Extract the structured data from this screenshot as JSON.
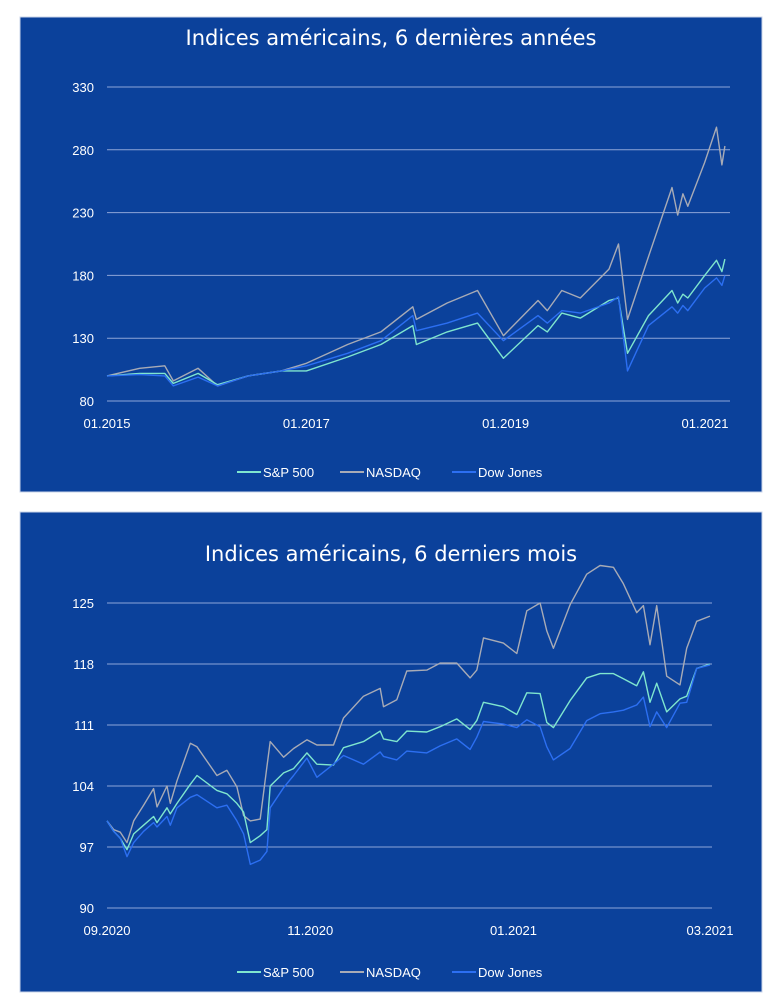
{
  "colors": {
    "background": "#0b419b",
    "grid": "#8ea5d8",
    "sp500": "#7fe6cf",
    "nasdaq": "#a8abb6",
    "dow": "#2c6ff2"
  },
  "chart_data": [
    {
      "type": "line",
      "title": "Indices américains, 6 dernières années",
      "ylim": [
        80,
        330
      ],
      "y_ticks": [
        80,
        130,
        180,
        230,
        280,
        330
      ],
      "x_ticks": [
        {
          "date": "2015-01-01",
          "label": "01.2015"
        },
        {
          "date": "2017-01-01",
          "label": "01.2017"
        },
        {
          "date": "2019-01-01",
          "label": "01.2019"
        },
        {
          "date": "2021-01-01",
          "label": "01.2021"
        }
      ],
      "grid": true,
      "legend": "bottom",
      "x": [
        "2015-01-01",
        "2015-05-01",
        "2015-08-01",
        "2015-09-01",
        "2015-12-01",
        "2016-02-10",
        "2016-06-01",
        "2016-10-01",
        "2017-01-01",
        "2017-06-01",
        "2017-10-01",
        "2018-01-26",
        "2018-02-08",
        "2018-06-01",
        "2018-09-20",
        "2018-12-24",
        "2019-04-30",
        "2019-06-03",
        "2019-07-26",
        "2019-10-02",
        "2020-01-15",
        "2020-02-19",
        "2020-03-23",
        "2020-06-08",
        "2020-09-02",
        "2020-09-23",
        "2020-10-12",
        "2020-10-30",
        "2020-12-31",
        "2021-02-12",
        "2021-03-04",
        "2021-03-15"
      ],
      "series": [
        {
          "name": "S&P 500",
          "color": "#7fe6cf",
          "values": [
            100,
            102,
            102,
            94,
            102,
            93,
            100,
            104,
            104,
            115,
            125,
            140,
            125,
            135,
            142,
            114,
            140,
            135,
            150,
            146,
            160,
            162,
            118,
            148,
            168,
            158,
            165,
            162,
            180,
            192,
            183,
            193
          ]
        },
        {
          "name": "NASDAQ",
          "color": "#a8abb6",
          "values": [
            100,
            106,
            108,
            96,
            106,
            92,
            100,
            104,
            110,
            125,
            135,
            155,
            145,
            158,
            168,
            132,
            160,
            152,
            168,
            162,
            185,
            205,
            145,
            195,
            250,
            228,
            245,
            235,
            270,
            298,
            268,
            283
          ]
        },
        {
          "name": "Dow Jones",
          "color": "#2c6ff2",
          "values": [
            100,
            101,
            100,
            92,
            99,
            92,
            100,
            104,
            108,
            118,
            128,
            148,
            136,
            142,
            150,
            128,
            148,
            142,
            152,
            150,
            158,
            163,
            104,
            140,
            155,
            150,
            156,
            152,
            170,
            178,
            172,
            180
          ]
        }
      ]
    },
    {
      "type": "line",
      "title": "Indices américains, 6 derniers mois",
      "ylim": [
        90,
        125
      ],
      "y_ticks": [
        90,
        97,
        104,
        111,
        118,
        125
      ],
      "x_ticks": [
        {
          "date": "2020-09-01",
          "label": "09.2020"
        },
        {
          "date": "2020-11-01",
          "label": "11.2020"
        },
        {
          "date": "2021-01-01",
          "label": "01.2021"
        },
        {
          "date": "2021-03-01",
          "label": "03.2021"
        }
      ],
      "grid": true,
      "legend": "bottom",
      "x": [
        "2020-09-01",
        "2020-09-03",
        "2020-09-05",
        "2020-09-07",
        "2020-09-09",
        "2020-09-12",
        "2020-09-15",
        "2020-09-16",
        "2020-09-19",
        "2020-09-20",
        "2020-09-22",
        "2020-09-26",
        "2020-09-28",
        "2020-10-04",
        "2020-10-07",
        "2020-10-10",
        "2020-10-12",
        "2020-10-14",
        "2020-10-17",
        "2020-10-19",
        "2020-10-20",
        "2020-10-24",
        "2020-10-27",
        "2020-10-31",
        "2020-11-03",
        "2020-11-08",
        "2020-11-11",
        "2020-11-17",
        "2020-11-22",
        "2020-11-23",
        "2020-11-27",
        "2020-11-30",
        "2020-12-06",
        "2020-12-10",
        "2020-12-15",
        "2020-12-19",
        "2020-12-21",
        "2020-12-23",
        "2020-12-29",
        "2021-01-02",
        "2021-01-05",
        "2021-01-09",
        "2021-01-11",
        "2021-01-13",
        "2021-01-18",
        "2021-01-23",
        "2021-01-27",
        "2021-01-31",
        "2021-02-03",
        "2021-02-07",
        "2021-02-09",
        "2021-02-11",
        "2021-02-13",
        "2021-02-16",
        "2021-02-20",
        "2021-02-22",
        "2021-02-25",
        "2021-03-01"
      ],
      "series": [
        {
          "name": "S&P 500",
          "color": "#7fe6cf",
          "values": [
            100,
            98.8,
            98,
            96.7,
            98.5,
            99.5,
            100.5,
            99.8,
            101.5,
            100.8,
            102,
            104.2,
            105.2,
            103.5,
            103.1,
            102,
            101,
            97.5,
            98.3,
            99,
            104,
            105.5,
            106,
            107.8,
            106.5,
            106.4,
            108.4,
            109.1,
            110.3,
            109.4,
            109.1,
            110.3,
            110.2,
            110.8,
            111.7,
            110.5,
            111.5,
            113.6,
            113.1,
            112.2,
            114.7,
            114.6,
            111.3,
            110.7,
            113.8,
            116.4,
            116.9,
            116.9,
            116.3,
            115.5,
            117.1,
            113.6,
            115.8,
            112.5,
            114,
            114.3,
            117.5,
            118
          ]
        },
        {
          "name": "NASDAQ",
          "color": "#a8abb6",
          "values": [
            100,
            99,
            98.7,
            97.5,
            100,
            101.8,
            103.7,
            101.6,
            104,
            102,
            104.6,
            108.9,
            108.5,
            105.2,
            105.8,
            103.9,
            100.6,
            100,
            100.2,
            106.2,
            109.1,
            107.3,
            108.3,
            109.3,
            108.7,
            108.7,
            111.8,
            114.3,
            115.2,
            113.1,
            113.9,
            117.2,
            117.3,
            118.1,
            118.1,
            116.4,
            117.3,
            121,
            120.4,
            119.2,
            124.1,
            125,
            121.8,
            119.8,
            124.8,
            128.3,
            129.3,
            129.1,
            127.2,
            123.9,
            124.7,
            120.2,
            124.7,
            116.6,
            115.6,
            119.8,
            122.9,
            123.5
          ]
        },
        {
          "name": "Dow Jones",
          "color": "#2c6ff2",
          "values": [
            100,
            98.8,
            98,
            95.9,
            97.5,
            98.8,
            99.8,
            99.3,
            100.5,
            99.5,
            101.5,
            102.7,
            103,
            101.5,
            101.8,
            100,
            98.5,
            95,
            95.5,
            96.5,
            101.5,
            103.8,
            105.2,
            107.2,
            105,
            106.5,
            107.5,
            106.5,
            107.9,
            107.4,
            107,
            108,
            107.8,
            108.6,
            109.4,
            108.2,
            109.6,
            111.4,
            111.1,
            110.7,
            111.6,
            110.8,
            108.5,
            107,
            108.3,
            111.5,
            112.3,
            112.5,
            112.7,
            113.3,
            114.2,
            110.8,
            112.5,
            110.7,
            113.5,
            113.6,
            117.5,
            117.9
          ]
        }
      ]
    }
  ]
}
